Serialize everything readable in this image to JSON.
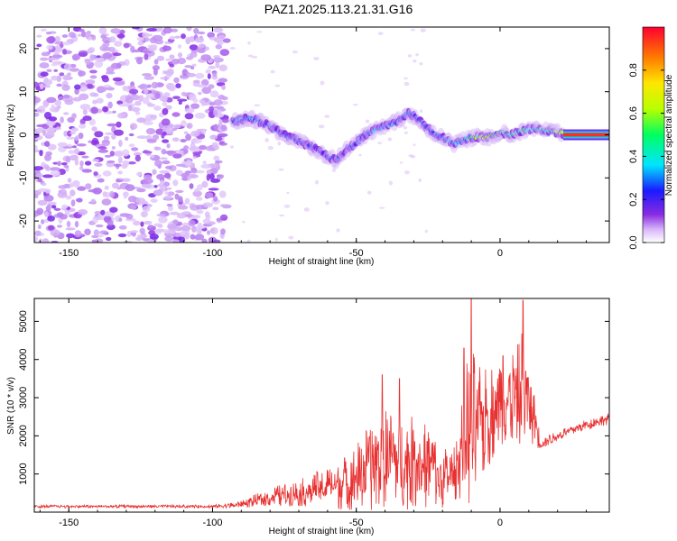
{
  "title": "PAZ1.2025.113.21.31.G16",
  "chart_data": [
    {
      "type": "heatmap",
      "xlabel": "Height of straight line (km)",
      "ylabel": "Frequency (Hz)",
      "xlim": [
        -162,
        38
      ],
      "ylim": [
        -25,
        25
      ],
      "xticks": [
        -150,
        -100,
        -50,
        0
      ],
      "yticks": [
        -20,
        -10,
        0,
        10,
        20
      ],
      "colorbar": {
        "label": "Normalized spectral amplitude",
        "range": [
          0,
          1
        ],
        "ticks": [
          "0.0",
          "0.2",
          "0.4",
          "0.6",
          "0.8"
        ],
        "colormap": "rainbow"
      },
      "ridge": {
        "x": [
          -93,
          -87,
          -80,
          -75,
          -70,
          -65,
          -60,
          -57,
          -53,
          -50,
          -47,
          -44,
          -40,
          -36,
          -32,
          -29,
          -26,
          -22,
          -19,
          -16,
          -12,
          -8,
          -4,
          0,
          4,
          8,
          12,
          16,
          20,
          24,
          38
        ],
        "y": [
          3,
          4,
          2,
          0,
          -1.5,
          -3,
          -5,
          -6,
          -3,
          -2,
          0,
          1,
          2,
          3,
          5,
          4,
          2,
          0,
          -1,
          -2,
          -1,
          -0.5,
          -0.5,
          0.5,
          0,
          1,
          1.5,
          1,
          0.5,
          0,
          0
        ],
        "amplitude": [
          0.3,
          0.35,
          0.3,
          0.28,
          0.25,
          0.25,
          0.25,
          0.3,
          0.25,
          0.3,
          0.3,
          0.35,
          0.35,
          0.3,
          0.35,
          0.3,
          0.3,
          0.35,
          0.4,
          0.4,
          0.5,
          0.6,
          0.7,
          0.6,
          0.5,
          0.55,
          0.45,
          0.5,
          0.6,
          0.95,
          0.95
        ]
      },
      "noise_region_x": [
        -162,
        -95
      ]
    },
    {
      "type": "line",
      "xlabel": "Height of straight line (km)",
      "ylabel": "SNR (10 * v/v)",
      "xlim": [
        -162,
        38
      ],
      "ylim": [
        0,
        5600
      ],
      "xticks": [
        -150,
        -100,
        -50,
        0
      ],
      "yticks": [
        1000,
        2000,
        3000,
        4000,
        5000
      ],
      "color": "#e83030",
      "envelope": {
        "x": [
          -162,
          -100,
          -90,
          -80,
          -70,
          -60,
          -55,
          -50,
          -45,
          -40,
          -35,
          -30,
          -25,
          -20,
          -16,
          -14,
          -12,
          -10,
          -8,
          -5,
          -2,
          0,
          3,
          6,
          8,
          10,
          12,
          14,
          20,
          30,
          38
        ],
        "mean": [
          150,
          150,
          200,
          400,
          500,
          650,
          750,
          900,
          1200,
          1400,
          1300,
          1300,
          1200,
          900,
          1000,
          1500,
          2000,
          2300,
          2000,
          2400,
          2700,
          3000,
          2900,
          3100,
          3200,
          2800,
          2400,
          1800,
          2000,
          2300,
          2450
        ],
        "spread": [
          40,
          40,
          90,
          250,
          350,
          550,
          700,
          900,
          1200,
          1300,
          1300,
          1200,
          1100,
          800,
          700,
          1200,
          1900,
          2200,
          1800,
          1400,
          1300,
          1200,
          1200,
          1300,
          1700,
          900,
          700,
          150,
          150,
          150,
          150
        ]
      },
      "peaks": [
        {
          "x": -10,
          "y": 5600
        },
        {
          "x": 8,
          "y": 5550
        },
        {
          "x": -41,
          "y": 3600
        },
        {
          "x": -35,
          "y": 3500
        },
        {
          "x": -12.5,
          "y": 4300
        },
        {
          "x": 1,
          "y": 4100
        }
      ]
    }
  ]
}
